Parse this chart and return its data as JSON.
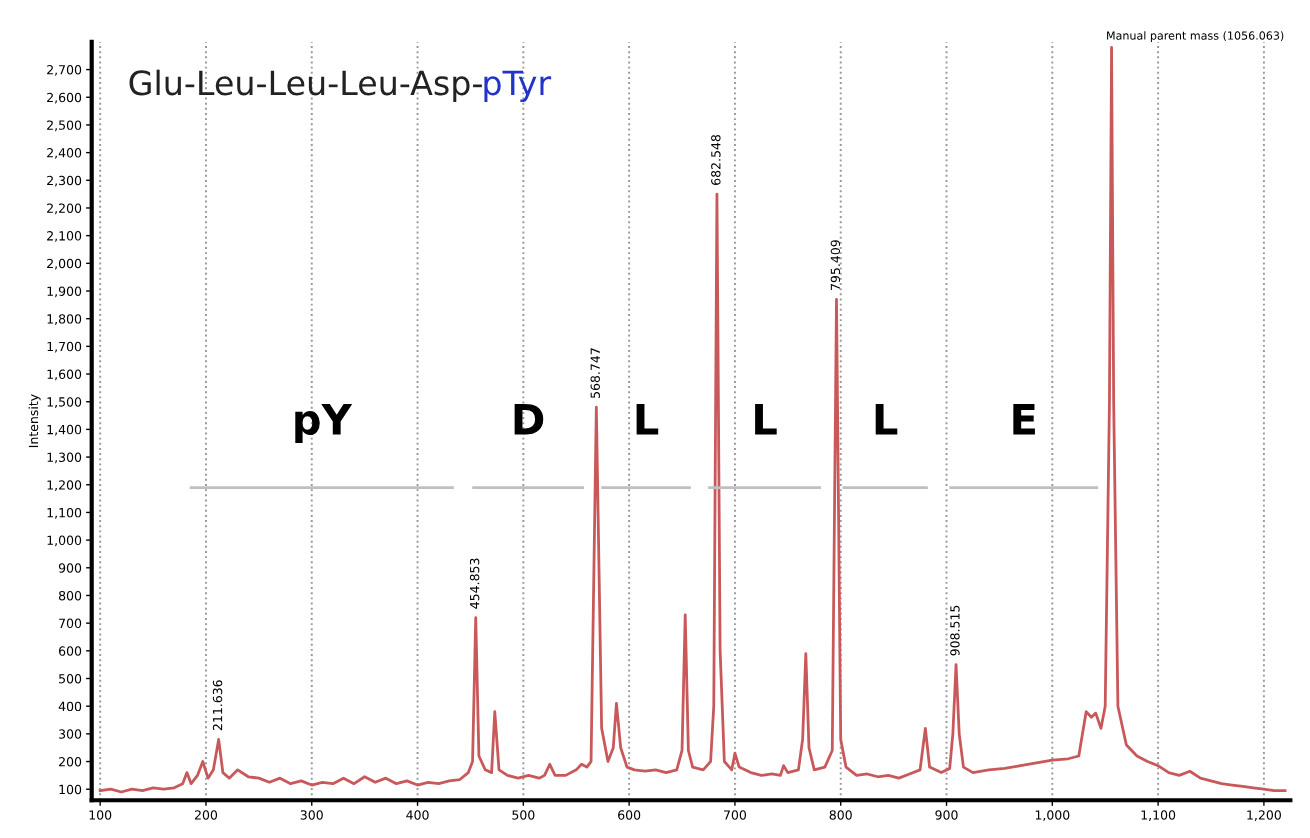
{
  "chart_data": {
    "type": "line",
    "title": "Glu-Leu-Leu-Leu-Asp-pTyr",
    "ylabel": "Intensity",
    "grid": "x",
    "marker": "none",
    "line_style": "solid",
    "xlim": [
      92,
      1225
    ],
    "ylim": [
      60,
      2800
    ],
    "xticks": [
      100,
      200,
      300,
      400,
      500,
      600,
      700,
      800,
      900,
      {
        "value": 1000,
        "label": "1,000"
      },
      {
        "value": 1100,
        "label": "1,100"
      },
      {
        "value": 1200,
        "label": "1,200"
      }
    ],
    "yticks": [
      100,
      200,
      300,
      400,
      500,
      600,
      700,
      800,
      900,
      {
        "value": 1000,
        "label": "1,000"
      },
      {
        "value": 1100,
        "label": "1,100"
      },
      {
        "value": 1200,
        "label": "1,200"
      },
      {
        "value": 1300,
        "label": "1,300"
      },
      {
        "value": 1400,
        "label": "1,400"
      },
      {
        "value": 1500,
        "label": "1,500"
      },
      {
        "value": 1600,
        "label": "1,600"
      },
      {
        "value": 1700,
        "label": "1,700"
      },
      {
        "value": 1800,
        "label": "1,800"
      },
      {
        "value": 1900,
        "label": "1,900"
      },
      {
        "value": 2000,
        "label": "2,000"
      },
      {
        "value": 2100,
        "label": "2,100"
      },
      {
        "value": 2200,
        "label": "2,200"
      },
      {
        "value": 2300,
        "label": "2,300"
      },
      {
        "value": 2400,
        "label": "2,400"
      },
      {
        "value": 2500,
        "label": "2,500"
      },
      {
        "value": 2600,
        "label": "2,600"
      },
      {
        "value": 2700,
        "label": "2,700"
      }
    ],
    "series": [
      {
        "color": "#c8585a",
        "x": [
          100,
          110,
          120,
          130,
          140,
          150,
          160,
          170,
          178,
          182,
          186,
          192,
          197,
          202,
          207,
          212,
          216,
          222,
          230,
          240,
          250,
          260,
          270,
          280,
          290,
          300,
          310,
          320,
          330,
          340,
          350,
          360,
          370,
          380,
          390,
          400,
          410,
          420,
          430,
          440,
          448,
          452,
          455,
          458,
          464,
          470,
          473,
          477,
          485,
          495,
          505,
          515,
          520,
          525,
          530,
          540,
          550,
          555,
          560,
          564,
          569,
          574,
          580,
          585,
          588,
          592,
          598,
          605,
          615,
          625,
          635,
          645,
          650,
          653,
          656,
          660,
          670,
          677,
          680,
          683,
          686,
          690,
          697,
          700,
          704,
          715,
          725,
          735,
          743,
          746,
          750,
          760,
          764,
          767,
          770,
          775,
          785,
          792,
          796,
          800,
          805,
          815,
          825,
          835,
          845,
          855,
          865,
          875,
          880,
          884,
          895,
          903,
          906,
          909,
          912,
          916,
          925,
          940,
          955,
          970,
          985,
          1000,
          1015,
          1025,
          1032,
          1037,
          1041,
          1046,
          1050,
          1054,
          1056,
          1058,
          1062,
          1070,
          1080,
          1090,
          1100,
          1110,
          1120,
          1130,
          1140,
          1150,
          1160,
          1170,
          1180,
          1190,
          1200,
          1210,
          1220
        ],
        "values": [
          95,
          100,
          90,
          100,
          95,
          105,
          100,
          105,
          120,
          160,
          120,
          150,
          200,
          140,
          170,
          280,
          160,
          140,
          170,
          145,
          140,
          125,
          140,
          120,
          130,
          115,
          125,
          120,
          140,
          120,
          145,
          125,
          140,
          120,
          130,
          115,
          125,
          120,
          130,
          135,
          160,
          200,
          720,
          220,
          170,
          160,
          380,
          170,
          150,
          140,
          150,
          140,
          150,
          190,
          150,
          150,
          170,
          190,
          180,
          200,
          1480,
          320,
          200,
          250,
          410,
          250,
          180,
          170,
          165,
          170,
          160,
          170,
          240,
          730,
          240,
          180,
          170,
          200,
          400,
          2250,
          600,
          200,
          170,
          230,
          180,
          160,
          150,
          155,
          150,
          185,
          160,
          170,
          280,
          590,
          250,
          170,
          180,
          240,
          1870,
          280,
          180,
          150,
          155,
          145,
          150,
          140,
          155,
          170,
          320,
          180,
          160,
          175,
          300,
          550,
          300,
          180,
          160,
          170,
          175,
          185,
          195,
          205,
          210,
          220,
          380,
          360,
          375,
          320,
          400,
          1500,
          2780,
          1500,
          400,
          260,
          220,
          200,
          185,
          160,
          150,
          165,
          140,
          130,
          120,
          115,
          110,
          105,
          100,
          95,
          95
        ]
      },
      {
        "color": "#bfbfbf",
        "x": [
          186,
          433
        ],
        "values": [
          1190,
          1190
        ]
      },
      {
        "color": "#bfbfbf",
        "x": [
          453,
          556
        ],
        "values": [
          1190,
          1190
        ]
      },
      {
        "color": "#bfbfbf",
        "x": [
          575,
          657
        ],
        "values": [
          1190,
          1190
        ]
      },
      {
        "color": "#bfbfbf",
        "x": [
          676,
          780
        ],
        "values": [
          1190,
          1190
        ]
      },
      {
        "color": "#bfbfbf",
        "x": [
          803,
          881
        ],
        "values": [
          1190,
          1190
        ]
      },
      {
        "color": "#bfbfbf",
        "x": [
          904,
          1042
        ],
        "values": [
          1190,
          1190
        ]
      }
    ],
    "annotations": [
      "pY",
      "D",
      "L",
      "L",
      "L",
      "E",
      {
        "text": "211.636",
        "x": 212,
        "y": 280
      },
      {
        "text": "454.853",
        "x": 455,
        "y": 720
      },
      {
        "text": "568.747",
        "x": 569,
        "y": 1480
      },
      {
        "text": "682.548",
        "x": 683,
        "y": 2250
      },
      {
        "text": "795.409",
        "x": 796,
        "y": 1870
      },
      {
        "text": "908.515",
        "x": 909,
        "y": 550
      },
      {
        "text": "Manual parent mass (1056.063)",
        "x": 1056,
        "y": 2780
      }
    ]
  }
}
